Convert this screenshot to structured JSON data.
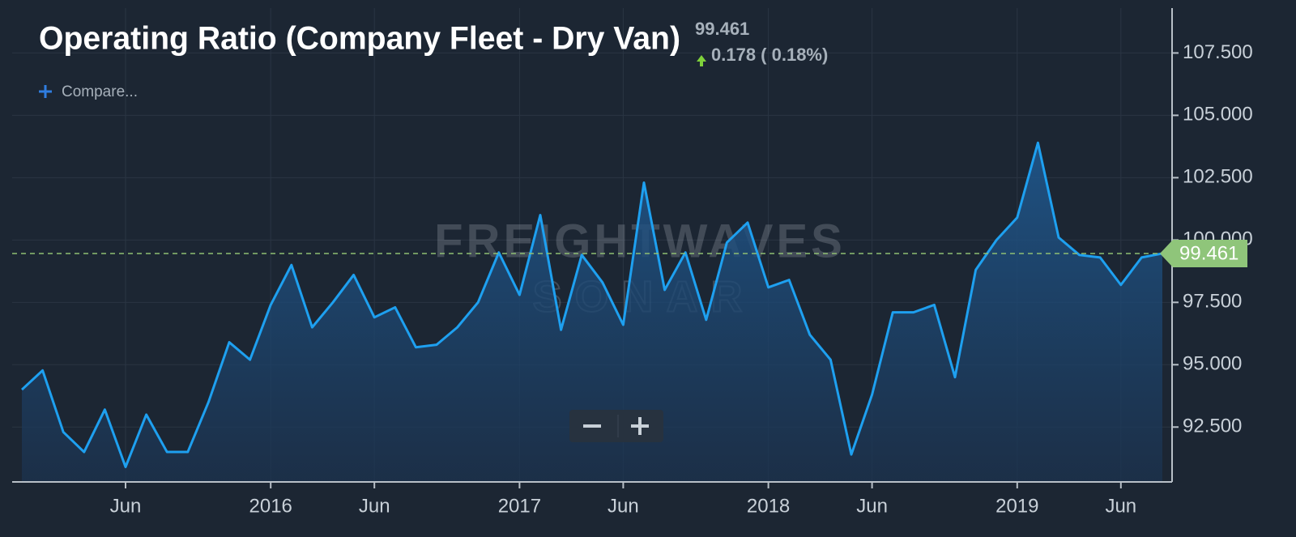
{
  "chart_data": {
    "type": "area",
    "title": "Operating Ratio (Company Fleet - Dry Van)",
    "last_value": 99.461,
    "change": "0.178 ( 0.18%)",
    "compare": "Compare...",
    "watermark": [
      "FREIGHTWAVES",
      "SONAR"
    ],
    "categories": [
      null,
      null,
      null,
      null,
      null,
      "Jun",
      null,
      null,
      null,
      null,
      null,
      null,
      "2016",
      null,
      null,
      null,
      null,
      "Jun",
      null,
      null,
      null,
      null,
      null,
      null,
      "2017",
      null,
      null,
      null,
      null,
      "Jun",
      null,
      null,
      null,
      null,
      null,
      null,
      "2018",
      null,
      null,
      null,
      null,
      "Jun",
      null,
      null,
      null,
      null,
      null,
      null,
      "2019",
      null,
      null,
      null,
      null,
      "Jun",
      null,
      null
    ],
    "series": [
      {
        "name": "Operating Ratio",
        "color": "#1ea0f0",
        "values": [
          94.0,
          94.77,
          92.3,
          91.5,
          93.2,
          90.9,
          93.0,
          91.5,
          91.5,
          93.5,
          95.9,
          95.2,
          97.4,
          99.0,
          96.5,
          97.5,
          98.6,
          96.9,
          97.3,
          95.7,
          95.8,
          96.5,
          97.5,
          99.5,
          97.8,
          101.0,
          96.4,
          99.4,
          98.3,
          96.6,
          102.3,
          98.0,
          99.5,
          96.8,
          99.9,
          100.7,
          98.1,
          98.4,
          96.2,
          95.2,
          91.4,
          93.8,
          97.1,
          97.1,
          97.4,
          94.5,
          98.8,
          100.0,
          100.9,
          103.9,
          100.1,
          99.4,
          99.3,
          98.2,
          99.3,
          99.461
        ]
      }
    ],
    "ylim": [
      90.3,
      109.3
    ],
    "yticks": [
      {
        "value": 92.5,
        "label": "92.500"
      },
      {
        "value": 95,
        "label": "95.000"
      },
      {
        "value": 97.5,
        "label": "97.500"
      },
      {
        "value": 100,
        "label": "100.000"
      },
      {
        "value": 102.5,
        "label": "102.500"
      },
      {
        "value": 105,
        "label": "105.000"
      },
      {
        "value": 107.5,
        "label": "107.500"
      }
    ],
    "grid": true
  }
}
